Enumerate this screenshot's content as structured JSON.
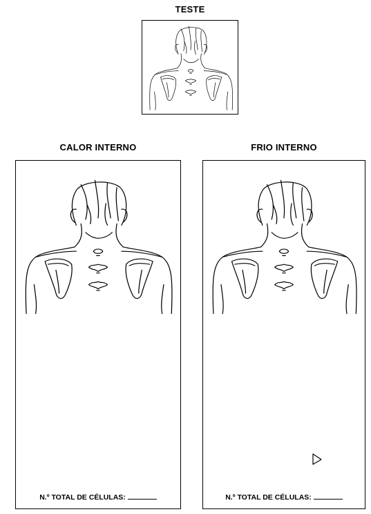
{
  "test_section": {
    "title": "TESTE"
  },
  "hot_section": {
    "title": "CALOR INTERNO",
    "count_label": "N.º TOTAL DE CÉLULAS:"
  },
  "cold_section": {
    "title": "FRIO INTERNO",
    "count_label": "N.º TOTAL DE CÉLULAS:"
  },
  "icons": {
    "cursor": "pointer-cursor-icon",
    "figure": "upper-back-anatomy-drawing"
  }
}
